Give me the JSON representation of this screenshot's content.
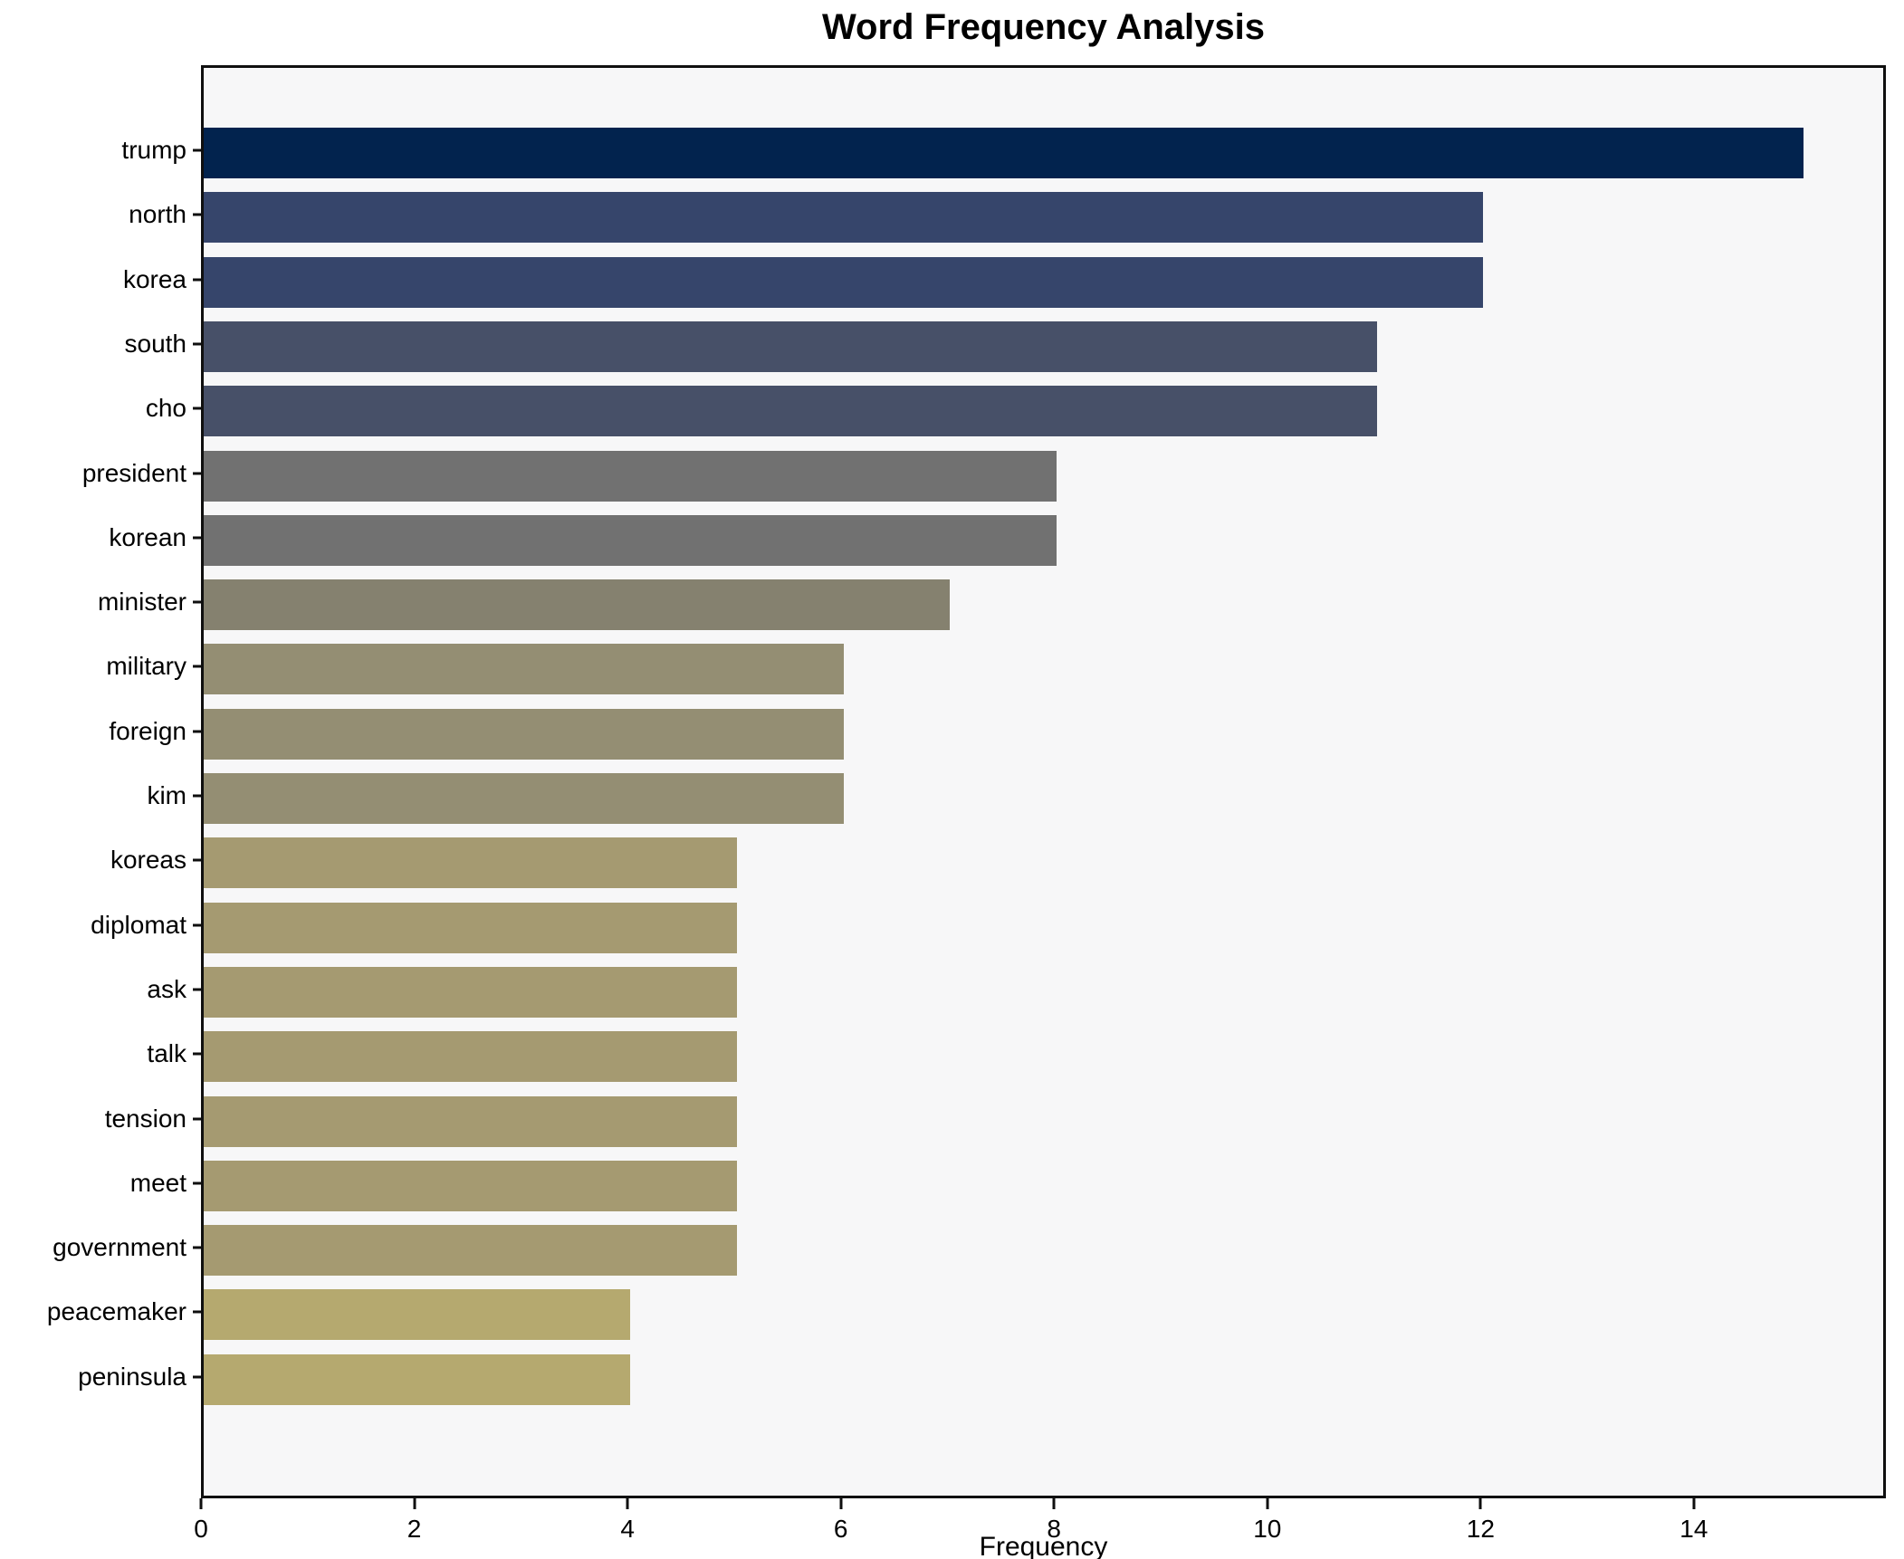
{
  "title": "Word Frequency Analysis",
  "chart_data": {
    "type": "bar",
    "orientation": "horizontal",
    "title": "Word Frequency Analysis",
    "xlabel": "Frequency",
    "ylabel": "",
    "categories": [
      "trump",
      "north",
      "korea",
      "south",
      "cho",
      "president",
      "korean",
      "minister",
      "military",
      "foreign",
      "kim",
      "koreas",
      "diplomat",
      "ask",
      "talk",
      "tension",
      "meet",
      "government",
      "peacemaker",
      "peninsula"
    ],
    "values": [
      15,
      12,
      12,
      11,
      11,
      8,
      8,
      7,
      6,
      6,
      6,
      5,
      5,
      5,
      5,
      5,
      5,
      5,
      4,
      4
    ],
    "bar_colors": [
      "#02234e",
      "#36456b",
      "#36456b",
      "#475068",
      "#475068",
      "#717171",
      "#717171",
      "#85816f",
      "#948e73",
      "#948e73",
      "#948e73",
      "#a59a71",
      "#a59a71",
      "#a59a71",
      "#a59a71",
      "#a59a71",
      "#a59a71",
      "#a59a71",
      "#b5a96f",
      "#b5a96f"
    ],
    "xticks": [
      0,
      2,
      4,
      6,
      8,
      10,
      12,
      14
    ],
    "xlim": [
      0,
      15.75
    ],
    "grid": false,
    "legend": null,
    "colormap": "cividis (darker = higher frequency)",
    "plot_background": "#f7f7f8",
    "figure_background": "#ffffff",
    "spine_color": "#0f0f0f",
    "text_color": "#000000"
  }
}
